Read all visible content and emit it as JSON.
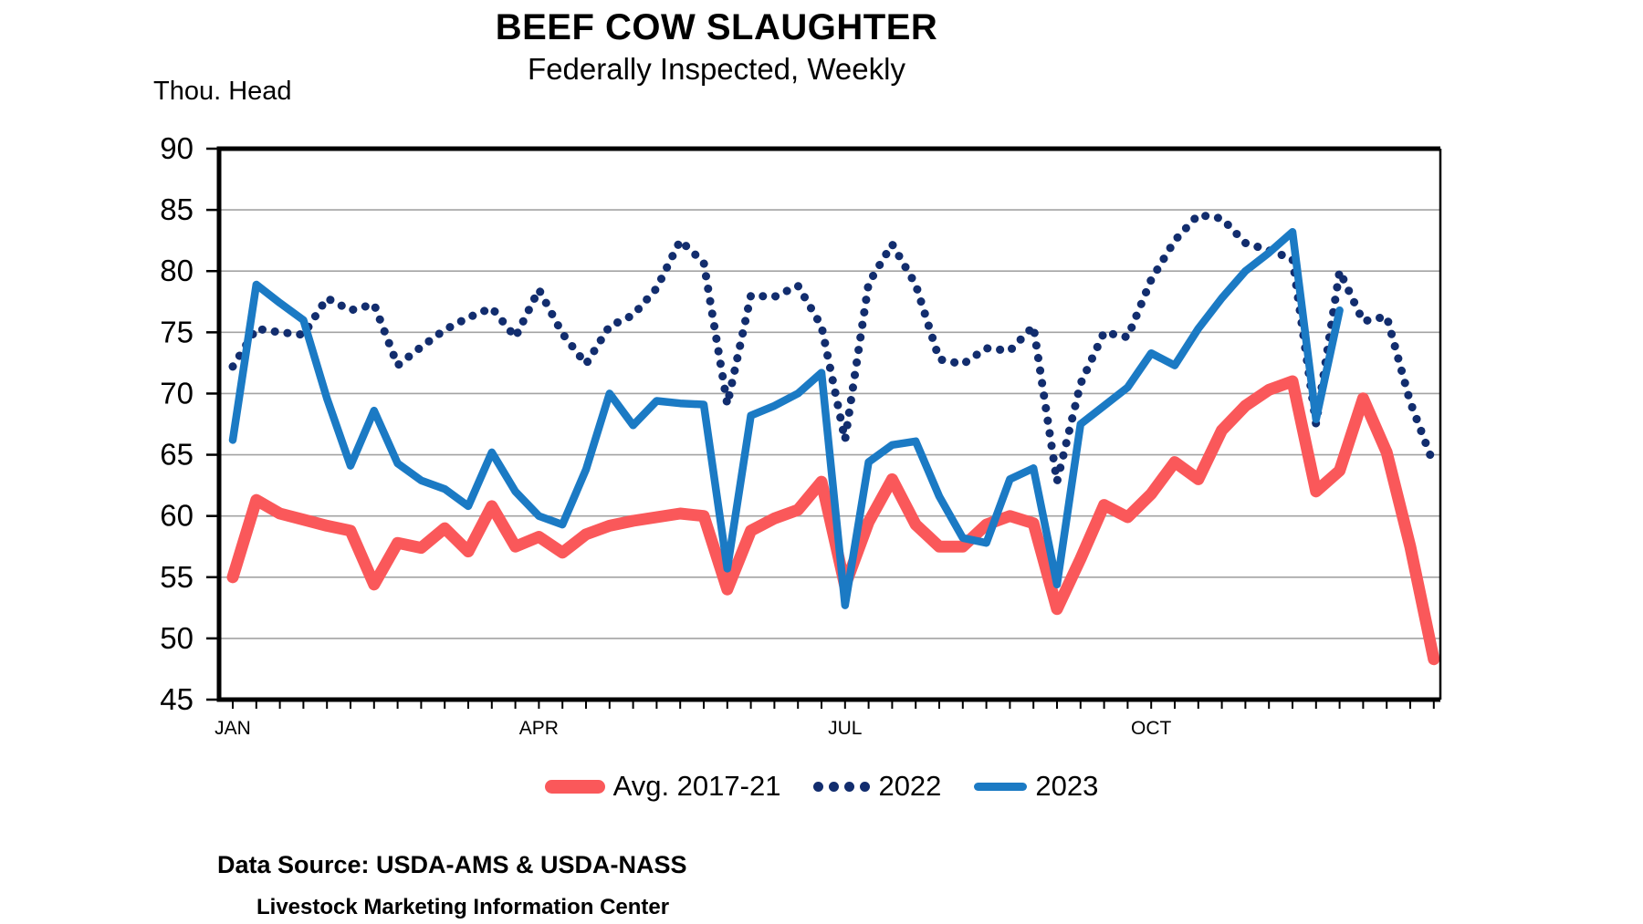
{
  "title": "BEEF COW SLAUGHTER",
  "subtitle": "Federally Inspected, Weekly",
  "y_axis_unit_label": "Thou. Head",
  "source_line1": "Data Source:  USDA-AMS & USDA-NASS",
  "source_line2": "Livestock Marketing Information Center",
  "legend": {
    "avg_label": "Avg. 2017-21",
    "y2022_label": "2022",
    "y2023_label": "2023"
  },
  "colors": {
    "avg_2017_21": "#fa585a",
    "y2022": "#122d6e",
    "y2023": "#1b7ac4",
    "gridline": "#a3a3a3",
    "axis": "#000000",
    "background": "#ffffff"
  },
  "chart_data": {
    "type": "line",
    "title": "BEEF COW SLAUGHTER",
    "subtitle": "Federally Inspected, Weekly",
    "xlabel": "",
    "ylabel": "Thou. Head",
    "ylim": [
      45,
      90
    ],
    "ytick_interval": 5,
    "ytick_labels": [
      45,
      50,
      55,
      60,
      65,
      70,
      75,
      80,
      85,
      90
    ],
    "x_unit": "week of year (1-52)",
    "xtick_labels": [
      "JAN",
      "APR",
      "JUL",
      "OCT"
    ],
    "xtick_label_weeks": [
      1,
      14,
      27,
      40
    ],
    "grid": "horizontal-only",
    "legend_position": "bottom",
    "series": [
      {
        "name": "Avg. 2017-21",
        "color": "#fa585a",
        "line_style": "solid",
        "line_width": 13,
        "values": [
          55.0,
          61.3,
          60.2,
          59.7,
          59.2,
          58.8,
          54.4,
          57.8,
          57.4,
          59.0,
          57.1,
          60.8,
          57.5,
          58.3,
          57.0,
          58.5,
          59.2,
          59.6,
          59.9,
          60.2,
          60.0,
          54.0,
          58.8,
          59.8,
          60.5,
          62.8,
          54.3,
          59.5,
          63.0,
          59.3,
          57.5,
          57.5,
          59.3,
          60.0,
          59.4,
          52.4,
          56.5,
          60.9,
          59.9,
          61.8,
          64.4,
          63.0,
          67.0,
          69.0,
          70.3,
          71.0,
          62.0,
          63.7,
          69.6,
          65.2,
          57.5,
          48.3
        ]
      },
      {
        "name": "2022",
        "color": "#122d6e",
        "line_style": "dotted",
        "line_width": 9,
        "values": [
          72.2,
          75.3,
          75.0,
          74.8,
          77.8,
          76.8,
          77.3,
          72.3,
          73.8,
          75.2,
          76.2,
          77.0,
          74.6,
          78.5,
          74.9,
          72.4,
          75.5,
          76.4,
          78.6,
          82.5,
          80.7,
          69.1,
          78.0,
          77.9,
          78.8,
          75.5,
          66.2,
          79.0,
          82.2,
          78.9,
          72.8,
          72.4,
          73.7,
          73.5,
          75.5,
          62.8,
          70.8,
          75.0,
          74.6,
          79.3,
          82.5,
          84.6,
          84.3,
          82.3,
          81.7,
          81.0,
          67.5,
          80.0,
          75.9,
          76.3,
          69.3,
          64.2
        ]
      },
      {
        "name": "2023",
        "color": "#1b7ac4",
        "line_style": "solid",
        "line_width": 8.5,
        "values": [
          66.2,
          78.9,
          77.4,
          76.0,
          69.6,
          64.1,
          68.6,
          64.3,
          62.9,
          62.2,
          60.8,
          65.2,
          62.0,
          60.0,
          59.3,
          63.8,
          70.0,
          67.4,
          69.4,
          69.2,
          69.1,
          55.7,
          68.2,
          69.0,
          70.0,
          71.7,
          52.7,
          64.4,
          65.8,
          66.1,
          61.6,
          58.2,
          57.8,
          63.0,
          63.9,
          54.4,
          67.5,
          69.0,
          70.5,
          73.3,
          72.3,
          75.3,
          77.8,
          80.0,
          81.5,
          83.2,
          67.9,
          76.8
        ]
      }
    ]
  }
}
